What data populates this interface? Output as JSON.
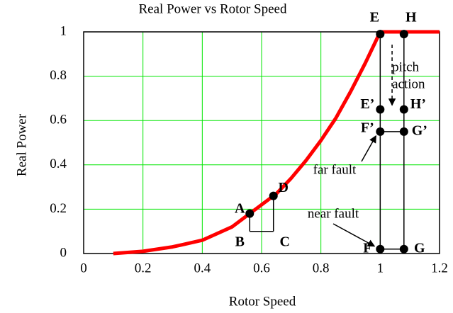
{
  "chart_data": {
    "type": "line",
    "title": "Real Power vs Rotor Speed",
    "x_label": "Rotor Speed",
    "y_label": "Real Power",
    "x": [
      0.1,
      0.2,
      0.3,
      0.4,
      0.5,
      0.55,
      0.6,
      0.65,
      0.7,
      0.75,
      0.8,
      0.85,
      0.9,
      0.95,
      1.0,
      1.2
    ],
    "series": [
      {
        "name": "Real Power",
        "color": "#ff0000",
        "values": [
          0,
          0.01,
          0.03,
          0.06,
          0.12,
          0.17,
          0.22,
          0.27,
          0.34,
          0.42,
          0.51,
          0.61,
          0.73,
          0.86,
          1,
          1
        ]
      }
    ],
    "xlim": [
      0,
      1.2
    ],
    "xticks": [
      0,
      0.2,
      0.4,
      0.6,
      0.8,
      1,
      1.2
    ],
    "ylim": [
      0,
      1
    ],
    "yticks": [
      0,
      0.2,
      0.4,
      0.6,
      0.8,
      1
    ],
    "grid": true,
    "grid_color": "#00e600",
    "points": [
      {
        "label": "A",
        "x": 0.56,
        "y": 0.18
      },
      {
        "label": "B",
        "x": 0.56,
        "y": 0.1
      },
      {
        "label": "C",
        "x": 0.64,
        "y": 0.1
      },
      {
        "label": "D",
        "x": 0.64,
        "y": 0.26
      },
      {
        "label": "E",
        "x": 1.0,
        "y": 0.99
      },
      {
        "label": "H",
        "x": 1.08,
        "y": 0.99
      },
      {
        "label": "E’",
        "x": 1.0,
        "y": 0.65
      },
      {
        "label": "H’",
        "x": 1.08,
        "y": 0.65
      },
      {
        "label": "F’",
        "x": 1.0,
        "y": 0.55
      },
      {
        "label": "G’",
        "x": 1.08,
        "y": 0.55
      },
      {
        "label": "F",
        "x": 1.0,
        "y": 0.02
      },
      {
        "label": "G",
        "x": 1.08,
        "y": 0.02
      }
    ],
    "annotations": [
      "pitch",
      "action",
      "far fault",
      "near fault"
    ]
  }
}
